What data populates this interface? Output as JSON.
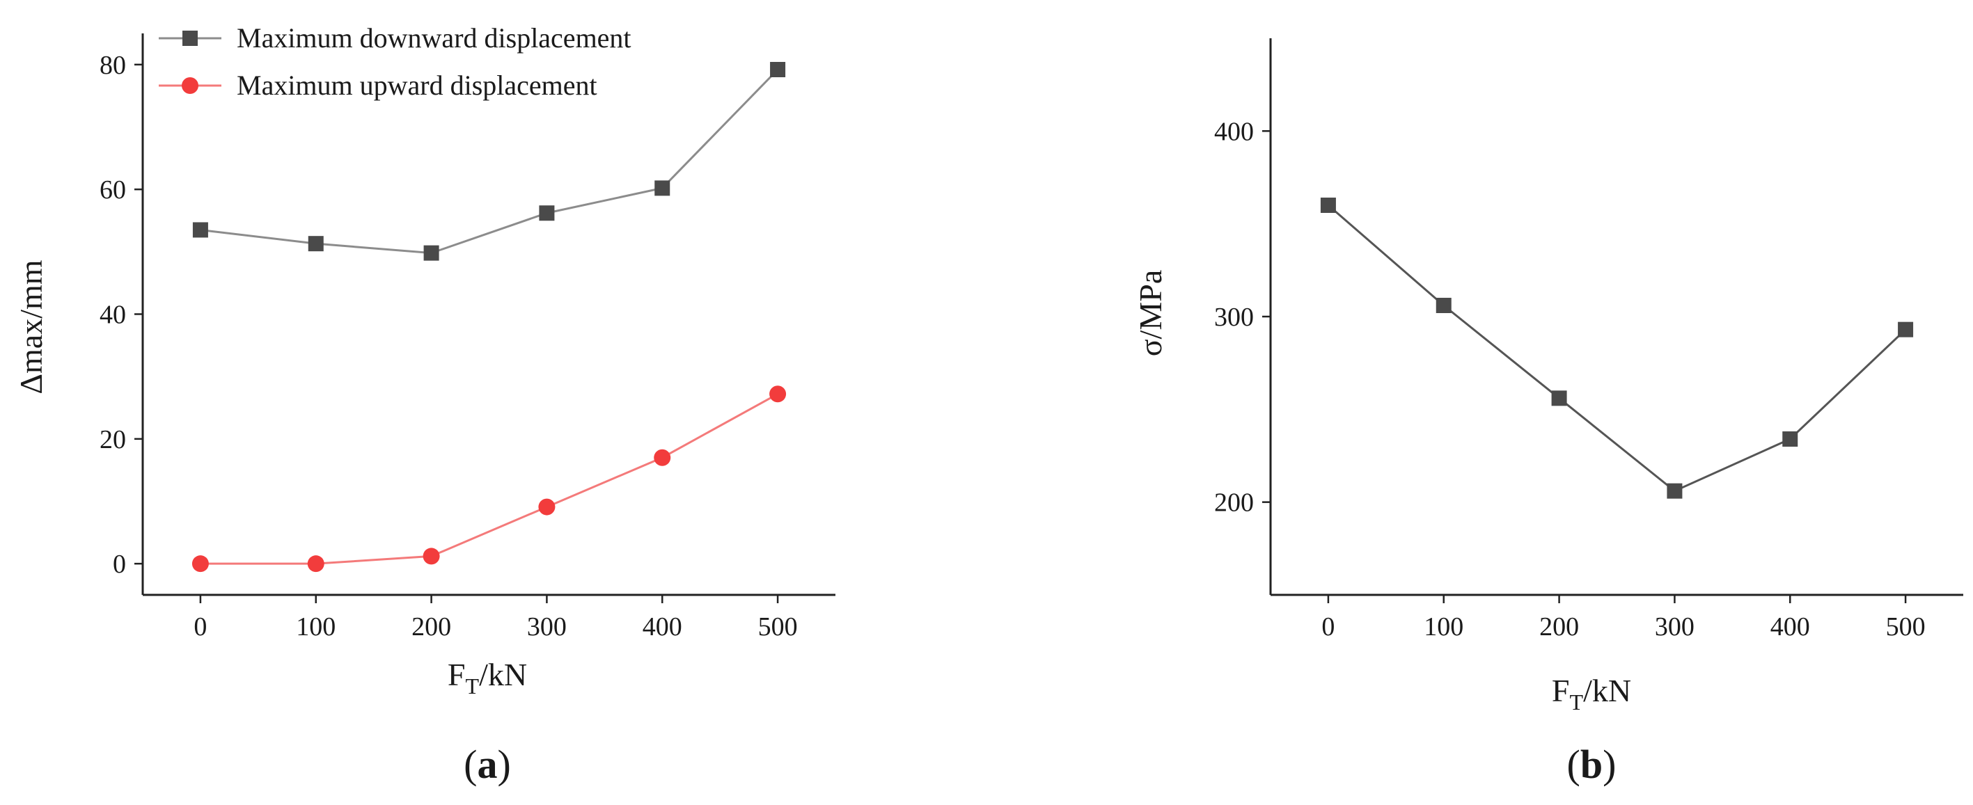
{
  "chart_data": [
    {
      "panel_label": {
        "open": "(",
        "letter": "a",
        "close": ")"
      },
      "type": "line",
      "xlabel": {
        "base": "F",
        "sub": "T",
        "rest": "/kN"
      },
      "ylabel": "Δmax/mm",
      "x": [
        0,
        100,
        200,
        300,
        400,
        500
      ],
      "xlim": [
        -50,
        550
      ],
      "ylim": [
        -5,
        85
      ],
      "xticks": [
        0,
        100,
        200,
        300,
        400,
        500
      ],
      "yticks": [
        0,
        20,
        40,
        60,
        80
      ],
      "grid": false,
      "legend_position": "top-left",
      "series": [
        {
          "name": "Maximum downward displacement",
          "marker": "square",
          "color": "#4a4a4a",
          "line_color": "#8c8c8c",
          "values": [
            53.5,
            51.3,
            49.8,
            56.2,
            60.2,
            79.2
          ]
        },
        {
          "name": "Maximum upward displacement",
          "marker": "circle",
          "color": "#f23c3c",
          "line_color": "#f47a7a",
          "values": [
            0,
            0,
            1.2,
            9.1,
            17.0,
            27.2
          ]
        }
      ]
    },
    {
      "panel_label": {
        "open": "(",
        "letter": "b",
        "close": ")"
      },
      "type": "line",
      "xlabel": {
        "base": "F",
        "sub": "T",
        "rest": "/kN"
      },
      "ylabel": "σ/MPa",
      "x": [
        0,
        100,
        200,
        300,
        400,
        500
      ],
      "xlim": [
        -50,
        550
      ],
      "ylim": [
        150,
        450
      ],
      "xticks": [
        0,
        100,
        200,
        300,
        400,
        500
      ],
      "yticks": [
        200,
        300,
        400
      ],
      "grid": false,
      "series": [
        {
          "marker": "square",
          "color": "#4a4a4a",
          "line_color": "#555555",
          "values": [
            360,
            306,
            256,
            206,
            234,
            293
          ]
        }
      ]
    }
  ]
}
